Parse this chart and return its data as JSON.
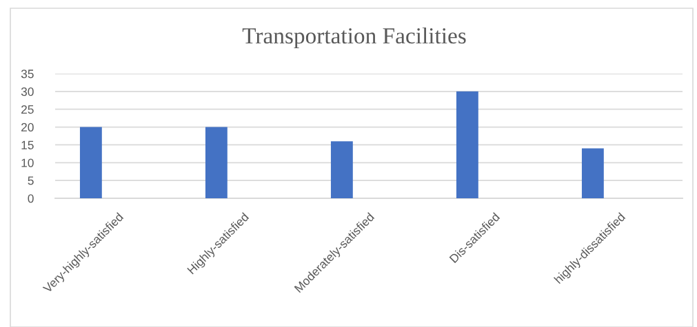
{
  "chart_data": {
    "type": "bar",
    "title": "Transportation Facilities",
    "categories": [
      "Very-highly-satisfied",
      "Highly-satisfied",
      "Moderately-satisfied",
      "Dis-satisfied",
      "highly-dissatisfied"
    ],
    "values": [
      20,
      20,
      16,
      30,
      14
    ],
    "color": "#4472c4",
    "ylim": [
      0,
      35
    ],
    "yticks": [
      0,
      5,
      10,
      15,
      20,
      25,
      30,
      35
    ],
    "grid": "y"
  }
}
